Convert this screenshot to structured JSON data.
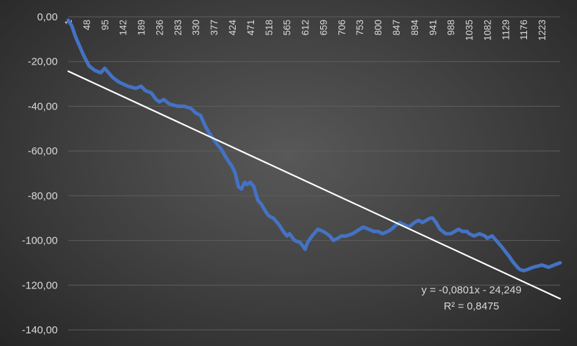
{
  "chart_data": {
    "type": "line",
    "title": "",
    "xlabel": "",
    "ylabel": "",
    "x_tick_labels": [
      "1",
      "48",
      "95",
      "142",
      "189",
      "236",
      "283",
      "330",
      "377",
      "424",
      "471",
      "518",
      "565",
      "612",
      "659",
      "706",
      "753",
      "800",
      "847",
      "894",
      "941",
      "988",
      "1035",
      "1082",
      "1129",
      "1176",
      "1223"
    ],
    "y_tick_labels": [
      "0,00",
      "-20,00",
      "-40,00",
      "-60,00",
      "-80,00",
      "-100,00",
      "-120,00",
      "-140,00"
    ],
    "xlim": [
      1,
      1270
    ],
    "ylim": [
      -140,
      0
    ],
    "grid": true,
    "legend": "none",
    "series": [
      {
        "color": "#4472c4",
        "x": [
          1,
          10,
          20,
          30,
          40,
          55,
          70,
          85,
          95,
          105,
          115,
          130,
          142,
          155,
          175,
          189,
          200,
          215,
          228,
          236,
          248,
          262,
          283,
          300,
          318,
          330,
          342,
          355,
          365,
          377,
          385,
          395,
          405,
          416,
          424,
          432,
          440,
          448,
          456,
          462,
          471,
          480,
          490,
          500,
          510,
          518,
          530,
          545,
          556,
          565,
          572,
          585,
          600,
          612,
          618,
          630,
          645,
          659,
          668,
          676,
          685,
          697,
          706,
          718,
          735,
          753,
          762,
          776,
          790,
          800,
          812,
          825,
          835,
          847,
          856,
          868,
          880,
          894,
          905,
          915,
          925,
          935,
          941,
          950,
          960,
          975,
          988,
          998,
          1008,
          1018,
          1030,
          1035,
          1048,
          1062,
          1076,
          1082,
          1095,
          1110,
          1120,
          1129,
          1138,
          1150,
          1160,
          1166,
          1176,
          1186,
          1200,
          1212,
          1223,
          1240,
          1255,
          1270
        ],
        "values": [
          -1.5,
          -4,
          -9,
          -13,
          -17,
          -22,
          -24,
          -25,
          -23,
          -25,
          -27,
          -29,
          -30,
          -31,
          -32,
          -31,
          -33,
          -34,
          -37,
          -38,
          -37,
          -39,
          -40,
          -40,
          -41,
          -43,
          -44,
          -49,
          -52,
          -55,
          -57,
          -59,
          -62,
          -65,
          -67,
          -70,
          -76,
          -77,
          -74,
          -75,
          -74,
          -76,
          -82,
          -84,
          -87,
          -89,
          -90,
          -93,
          -96,
          -98,
          -97,
          -100,
          -101,
          -104,
          -101,
          -98,
          -95,
          -96,
          -97,
          -98,
          -100,
          -99,
          -98,
          -98,
          -97,
          -95,
          -94,
          -95,
          -96,
          -96,
          -97,
          -96,
          -95,
          -93,
          -92,
          -93,
          -94,
          -92,
          -91,
          -92,
          -91,
          -90,
          -90,
          -92,
          -95,
          -97,
          -97,
          -96,
          -95,
          -96,
          -96,
          -97,
          -98,
          -97,
          -98,
          -99,
          -98,
          -101,
          -103,
          -105,
          -107,
          -110,
          -112,
          -113,
          -113.5,
          -113,
          -112,
          -111.5,
          -111,
          -112,
          -111,
          -110
        ]
      },
      {
        "color": "#ffffff",
        "x": [
          1,
          1270
        ],
        "values": [
          -24.329,
          -126.06
        ]
      }
    ],
    "annotations": [
      "y = -0,0801x - 24,249",
      "R² = 0,8475"
    ]
  }
}
